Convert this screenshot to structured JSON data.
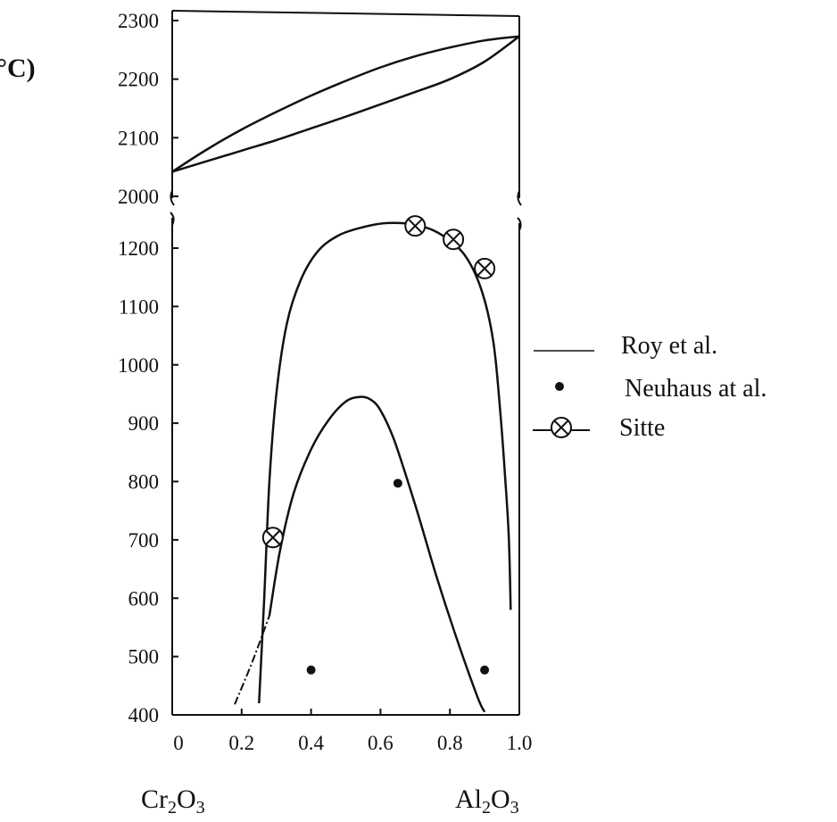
{
  "chart_data": {
    "type": "line",
    "unit_label": "°C)",
    "x_left_component": {
      "base": "Cr",
      "sub1": "2",
      "mid": "O",
      "sub2": "3"
    },
    "x_right_component": {
      "base": "Al",
      "sub1": "2",
      "mid": "O",
      "sub2": "3"
    },
    "x_ticks": [
      "0",
      "0.2",
      "0.4",
      "0.6",
      "0.8",
      "1.0"
    ],
    "x_tick_values": [
      0,
      0.2,
      0.4,
      0.6,
      0.8,
      1.0
    ],
    "xlim": [
      0,
      1.0
    ],
    "upper_panel": {
      "y_ticks": [
        "2000",
        "2100",
        "2200",
        "2300"
      ],
      "y_tick_values": [
        2000,
        2100,
        2200,
        2300
      ],
      "ylim": [
        2000,
        2300
      ],
      "series": [
        {
          "role": "liquidus",
          "x": [
            0,
            0.1,
            0.2,
            0.3,
            0.4,
            0.5,
            0.6,
            0.7,
            0.8,
            0.9,
            1.0
          ],
          "y": [
            2042,
            2080,
            2114,
            2144,
            2172,
            2197,
            2220,
            2239,
            2254,
            2266,
            2273
          ]
        },
        {
          "role": "solidus",
          "x": [
            0,
            0.1,
            0.2,
            0.3,
            0.4,
            0.5,
            0.6,
            0.7,
            0.8,
            0.9,
            1.0
          ],
          "y": [
            2042,
            2060,
            2078,
            2096,
            2116,
            2136,
            2157,
            2178,
            2200,
            2230,
            2273
          ]
        }
      ]
    },
    "lower_panel": {
      "y_ticks": [
        "400",
        "500",
        "600",
        "700",
        "800",
        "900",
        "1000",
        "1100",
        "1200"
      ],
      "y_tick_values": [
        400,
        500,
        600,
        700,
        800,
        900,
        1000,
        1100,
        1200
      ],
      "ylim": [
        400,
        1260
      ],
      "series": [
        {
          "role": "roy-miscibility-gap",
          "x": [
            0.25,
            0.265,
            0.28,
            0.3,
            0.33,
            0.37,
            0.42,
            0.48,
            0.55,
            0.62,
            0.7,
            0.77,
            0.84,
            0.89,
            0.925,
            0.945,
            0.96,
            0.97,
            0.975
          ],
          "y": [
            420,
            600,
            800,
            950,
            1070,
            1145,
            1195,
            1222,
            1236,
            1243,
            1240,
            1225,
            1190,
            1130,
            1040,
            920,
            800,
            700,
            580
          ]
        },
        {
          "role": "neuhaus-curve",
          "x": [
            0.28,
            0.31,
            0.35,
            0.4,
            0.45,
            0.5,
            0.54,
            0.57,
            0.6,
            0.64,
            0.7,
            0.76,
            0.82,
            0.88,
            0.9
          ],
          "y": [
            570,
            680,
            780,
            855,
            905,
            937,
            945,
            941,
            922,
            870,
            760,
            640,
            530,
            430,
            405
          ]
        },
        {
          "role": "dash-extension",
          "x": [
            0.18,
            0.23,
            0.28
          ],
          "y": [
            418,
            490,
            570
          ]
        }
      ],
      "neuhaus_points": [
        {
          "x": 0.4,
          "y": 477
        },
        {
          "x": 0.65,
          "y": 797
        },
        {
          "x": 0.9,
          "y": 477
        }
      ],
      "sitte_points": [
        {
          "x": 0.29,
          "y": 704
        },
        {
          "x": 0.7,
          "y": 1238
        },
        {
          "x": 0.81,
          "y": 1215
        },
        {
          "x": 0.9,
          "y": 1165
        }
      ]
    },
    "legend": [
      {
        "symbol": "line",
        "label": "Roy et al."
      },
      {
        "symbol": "dot",
        "label": "Neuhaus at al."
      },
      {
        "symbol": "circle-x",
        "label": "Sitte"
      }
    ],
    "grid": false,
    "legend_placement": "right",
    "line_color": "#111111"
  }
}
